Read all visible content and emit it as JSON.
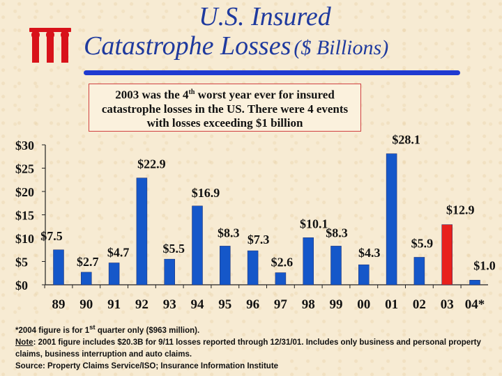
{
  "title": {
    "line1": "U.S. Insured",
    "line2": "Catastrophe Losses",
    "unit": "($ Billions)"
  },
  "callout": {
    "part1": "2003 was the 4",
    "superscript": "th",
    "part2": " worst year ever for insured catastrophe losses in the US.  There were 4 events with losses exceeding $1 billion"
  },
  "colors": {
    "bar_default": "#1557c9",
    "bar_highlight": "#e8211c",
    "title": "#1f3a9e",
    "logo": "#d8121a"
  },
  "chart_data": {
    "type": "bar",
    "categories": [
      "89",
      "90",
      "91",
      "92",
      "93",
      "94",
      "95",
      "96",
      "97",
      "98",
      "99",
      "00",
      "01",
      "02",
      "03",
      "04*"
    ],
    "values": [
      7.5,
      2.7,
      4.7,
      22.9,
      5.5,
      16.9,
      8.3,
      7.3,
      2.6,
      10.1,
      8.3,
      4.3,
      28.1,
      5.9,
      12.9,
      1.0
    ],
    "labels": [
      "$7.5",
      "$2.7",
      "$4.7",
      "$22.9",
      "$5.5",
      "$16.9",
      "$8.3",
      "$7.3",
      "$2.6",
      "$10.1",
      "$8.3",
      "$4.3",
      "$28.1",
      "$5.9",
      "$12.9",
      "$1.0"
    ],
    "highlight_category": "03",
    "y_ticks": [
      0,
      5,
      10,
      15,
      20,
      25,
      30
    ],
    "y_tick_labels": [
      "$0",
      "$5",
      "$10",
      "$15",
      "$20",
      "$25",
      "$30"
    ],
    "ylim": [
      0,
      30
    ],
    "title": "",
    "xlabel": "",
    "ylabel": ""
  },
  "footnote": {
    "line1": "*2004 figure is for 1",
    "line1_sup": "st",
    "line1_rest": " quarter only ($963 million).",
    "note_label": "Note",
    "note_text": ": 2001 figure includes $20.3B for 9/11 losses reported through 12/31/01.  Includes only business and personal property claims, business interruption and auto claims.",
    "source": "Source:  Property Claims Service/ISO; Insurance Information Institute"
  }
}
